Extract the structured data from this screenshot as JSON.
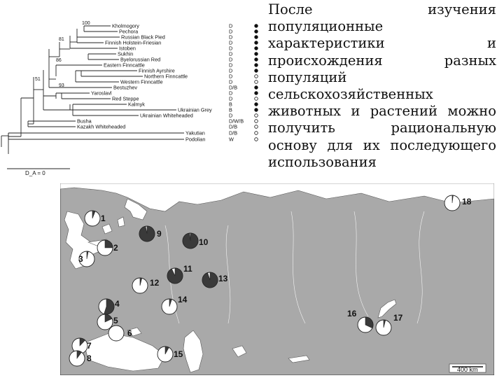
{
  "caption": "После изучения популяционные характеристики и происхождения разных популяций сельскохозяйственных животных и растений можно получить рациональную основу для их последующего использования",
  "tree": {
    "leaves": [
      {
        "label": "Kholmogory",
        "class_code": "D",
        "status": "filled"
      },
      {
        "label": "Pechora",
        "class_code": "D",
        "status": "filled"
      },
      {
        "label": "Russian Black Pied",
        "class_code": "D",
        "status": "filled"
      },
      {
        "label": "Finnish Holstein-Friesian",
        "class_code": "D",
        "status": "filled"
      },
      {
        "label": "Istoben",
        "class_code": "D",
        "status": "filled"
      },
      {
        "label": "Sukhin",
        "class_code": "D",
        "status": "filled"
      },
      {
        "label": "Byelorussian Red",
        "class_code": "D",
        "status": "filled"
      },
      {
        "label": "Eastern Finncattle",
        "class_code": "D",
        "status": "filled"
      },
      {
        "label": "Finnish Ayrshire",
        "class_code": "D",
        "status": "filled"
      },
      {
        "label": "Northern Finncattle",
        "class_code": "D",
        "status": "open"
      },
      {
        "label": "Western Finncattle",
        "class_code": "D",
        "status": "open"
      },
      {
        "label": "Bestuzhev",
        "class_code": "D/B",
        "status": "filled"
      },
      {
        "label": "Yaroslavl",
        "class_code": "D",
        "status": "filled"
      },
      {
        "label": "Red Steppe",
        "class_code": "D",
        "status": "open"
      },
      {
        "label": "Kalmyk",
        "class_code": "B",
        "status": "filled"
      },
      {
        "label": "Ukrainian Grey",
        "class_code": "B",
        "status": "filled"
      },
      {
        "label": "Ukrainian Whiteheaded",
        "class_code": "D",
        "status": "open"
      },
      {
        "label": "Busha",
        "class_code": "D/W/B",
        "status": "open"
      },
      {
        "label": "Kazakh Whiteheaded",
        "class_code": "D/B",
        "status": "open"
      },
      {
        "label": "Yakutian",
        "class_code": "D/B",
        "status": "open"
      },
      {
        "label": "Podolian",
        "class_code": "W",
        "status": "open"
      }
    ],
    "bootstrap": [
      "100",
      "81",
      "86",
      "51",
      "93"
    ],
    "scale_label": "D_A = 0"
  },
  "map": {
    "scale_label": "400 km",
    "sites": [
      {
        "label": "1",
        "dark": 0.06
      },
      {
        "label": "2",
        "dark": 0.25
      },
      {
        "label": "3",
        "dark": 0.03
      },
      {
        "label": "4",
        "dark": 0.55
      },
      {
        "label": "5",
        "dark": 0.18
      },
      {
        "label": "6",
        "dark": 0.0
      },
      {
        "label": "7",
        "dark": 0.12
      },
      {
        "label": "8",
        "dark": 0.1
      },
      {
        "label": "9",
        "dark": 0.97
      },
      {
        "label": "10",
        "dark": 0.98
      },
      {
        "label": "11",
        "dark": 0.93
      },
      {
        "label": "12",
        "dark": 0.04
      },
      {
        "label": "13",
        "dark": 0.95
      },
      {
        "label": "14",
        "dark": 0.05
      },
      {
        "label": "15",
        "dark": 0.08
      },
      {
        "label": "16",
        "dark": 0.32
      },
      {
        "label": "17",
        "dark": 0.04
      },
      {
        "label": "18",
        "dark": 0.02
      }
    ]
  }
}
